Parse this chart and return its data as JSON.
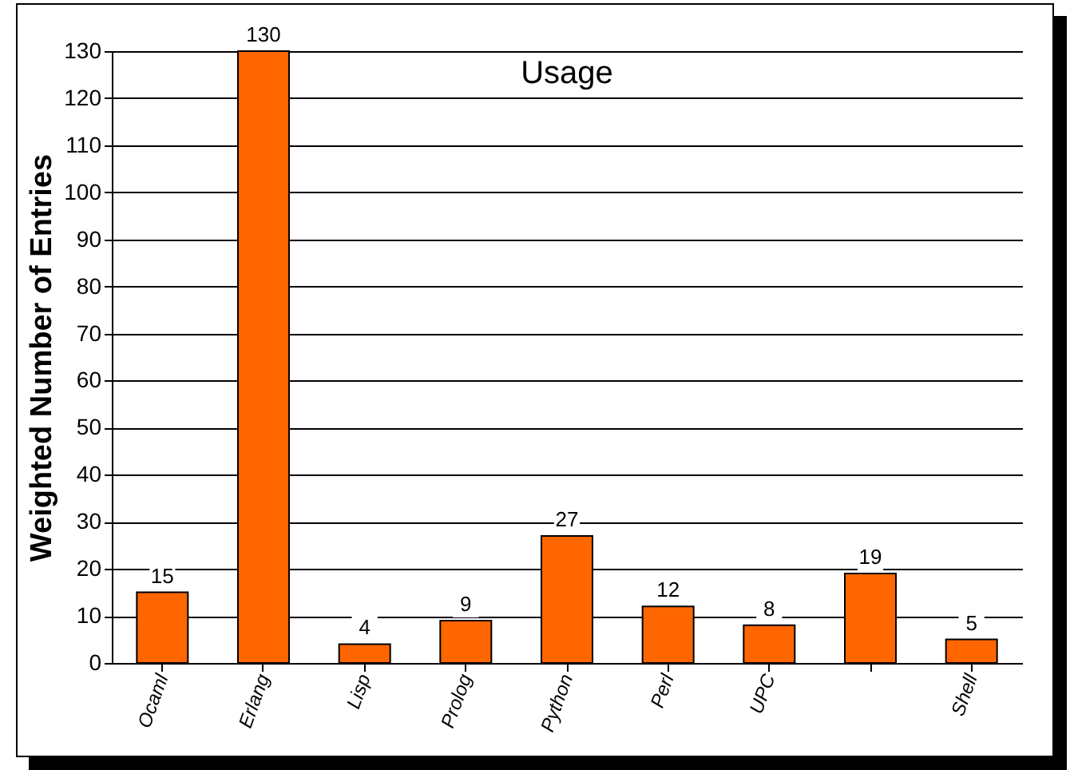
{
  "chart_data": {
    "type": "bar",
    "title": "Usage",
    "ylabel": "Weighted Number of Entries",
    "categories": [
      "Ocaml",
      "Erlang",
      "Lisp",
      "Prolog",
      "Python",
      "Perl",
      "UPC",
      null,
      "Shell"
    ],
    "values": [
      15,
      130,
      4,
      9,
      27,
      12,
      8,
      19,
      5
    ],
    "color": "#ff6600",
    "ylim": [
      0,
      130
    ],
    "yticks": [
      0,
      10,
      20,
      30,
      40,
      50,
      60,
      70,
      80,
      90,
      100,
      110,
      120,
      130
    ],
    "grid": "y",
    "data_labels": true
  }
}
